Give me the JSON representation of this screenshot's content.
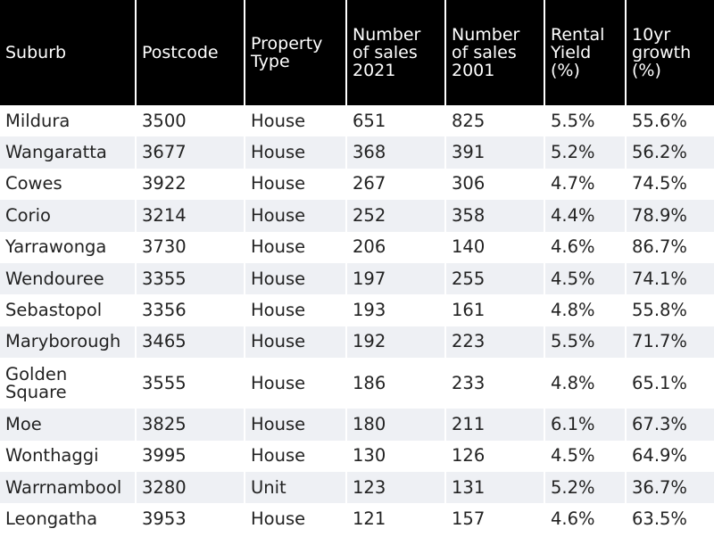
{
  "table": {
    "headers": [
      "Suburb",
      "Postcode",
      "Property Type",
      "Number of sales 2021",
      "Number of sales 2001",
      "Rental Yield (%)",
      "10yr growth (%)"
    ],
    "rows": [
      [
        "Mildura",
        "3500",
        "House",
        "651",
        "825",
        "5.5%",
        "55.6%"
      ],
      [
        "Wangaratta",
        "3677",
        "House",
        "368",
        "391",
        "5.2%",
        "56.2%"
      ],
      [
        "Cowes",
        "3922",
        "House",
        "267",
        "306",
        "4.7%",
        "74.5%"
      ],
      [
        "Corio",
        "3214",
        "House",
        "252",
        "358",
        "4.4%",
        "78.9%"
      ],
      [
        "Yarrawonga",
        "3730",
        "House",
        "206",
        "140",
        "4.6%",
        "86.7%"
      ],
      [
        "Wendouree",
        "3355",
        "House",
        "197",
        "255",
        "4.5%",
        "74.1%"
      ],
      [
        "Sebastopol",
        "3356",
        "House",
        "193",
        "161",
        "4.8%",
        "55.8%"
      ],
      [
        "Maryborough",
        "3465",
        "House",
        "192",
        "223",
        "5.5%",
        "71.7%"
      ],
      [
        "Golden Square",
        "3555",
        "House",
        "186",
        "233",
        "4.8%",
        "65.1%"
      ],
      [
        "Moe",
        "3825",
        "House",
        "180",
        "211",
        "6.1%",
        "67.3%"
      ],
      [
        "Wonthaggi",
        "3995",
        "House",
        "130",
        "126",
        "4.5%",
        "64.9%"
      ],
      [
        "Warrnambool",
        "3280",
        "Unit",
        "123",
        "131",
        "5.2%",
        "36.7%"
      ],
      [
        "Leongatha",
        "3953",
        "House",
        "121",
        "157",
        "4.6%",
        "63.5%"
      ]
    ]
  }
}
